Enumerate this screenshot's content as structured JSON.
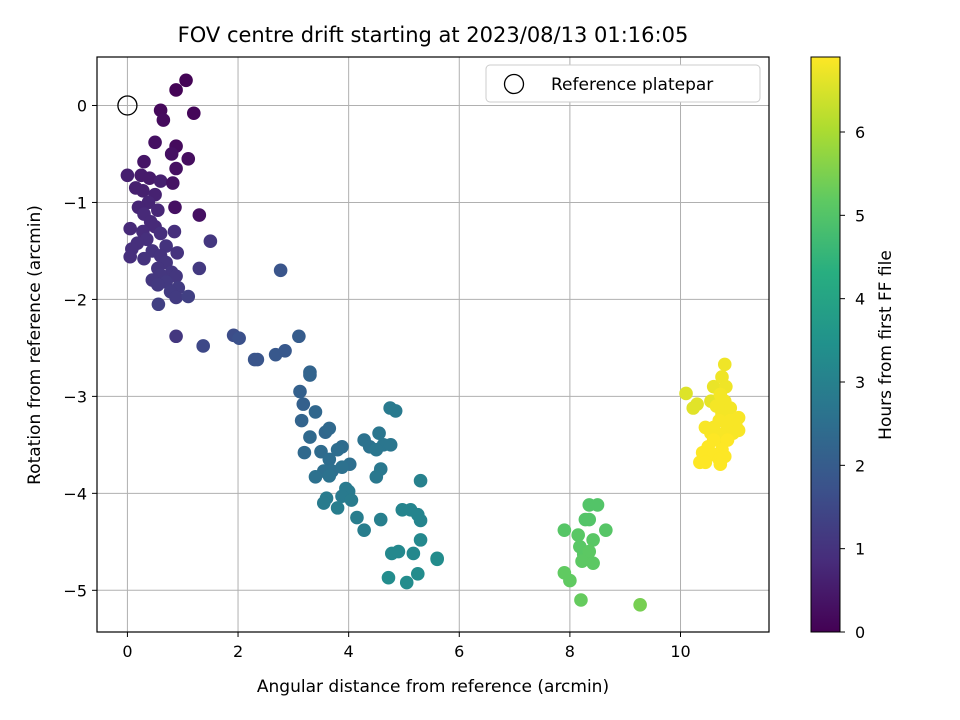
{
  "chart_data": {
    "type": "scatter",
    "title": "FOV centre drift starting at 2023/08/13 01:16:05",
    "xlabel": "Angular distance from reference (arcmin)",
    "ylabel": "Rotation from reference (arcmin)",
    "xlim": [
      -0.55,
      11.6
    ],
    "ylim": [
      -5.43,
      0.5
    ],
    "xticks": [
      0,
      2,
      4,
      6,
      8,
      10
    ],
    "yticks": [
      0,
      -1,
      -2,
      -3,
      -4,
      -5
    ],
    "grid": true,
    "legend": {
      "placement": "top-right",
      "entries": [
        "Reference platepar"
      ]
    },
    "reference_point": {
      "x": 0,
      "y": 0
    },
    "colorbar": {
      "label": "Hours from first FF file",
      "range": [
        0,
        6.9
      ],
      "ticks": [
        0,
        1,
        2,
        3,
        4,
        5,
        6
      ],
      "colormap": "viridis"
    },
    "series": [
      {
        "color_by": "Hours from first FF file",
        "points": [
          [
            1.06,
            0.26,
            0.05
          ],
          [
            0.88,
            0.16,
            0.05
          ],
          [
            0.6,
            -0.05,
            0.15
          ],
          [
            0.65,
            -0.15,
            0.2
          ],
          [
            1.2,
            -0.08,
            0.1
          ],
          [
            0.88,
            -0.42,
            0.2
          ],
          [
            0.5,
            -0.38,
            0.3
          ],
          [
            0.8,
            -0.5,
            0.3
          ],
          [
            1.1,
            -0.55,
            0.25
          ],
          [
            0.3,
            -0.58,
            0.4
          ],
          [
            0.88,
            -0.65,
            0.3
          ],
          [
            0.0,
            -0.72,
            0.6
          ],
          [
            0.25,
            -0.72,
            0.5
          ],
          [
            0.4,
            -0.75,
            0.5
          ],
          [
            0.6,
            -0.78,
            0.6
          ],
          [
            0.82,
            -0.8,
            0.35
          ],
          [
            0.15,
            -0.85,
            0.6
          ],
          [
            0.28,
            -0.88,
            0.6
          ],
          [
            0.5,
            -0.92,
            0.65
          ],
          [
            0.38,
            -1.0,
            0.7
          ],
          [
            0.2,
            -1.05,
            0.7
          ],
          [
            0.86,
            -1.05,
            0.3
          ],
          [
            0.55,
            -1.08,
            0.75
          ],
          [
            0.3,
            -1.12,
            0.8
          ],
          [
            0.42,
            -1.2,
            0.8
          ],
          [
            1.3,
            -1.13,
            0.3
          ],
          [
            0.5,
            -1.25,
            0.8
          ],
          [
            0.05,
            -1.27,
            0.8
          ],
          [
            0.28,
            -1.3,
            0.85
          ],
          [
            0.6,
            -1.32,
            0.9
          ],
          [
            0.85,
            -1.3,
            0.9
          ],
          [
            0.35,
            -1.38,
            0.9
          ],
          [
            0.18,
            -1.42,
            0.9
          ],
          [
            0.7,
            -1.45,
            1.0
          ],
          [
            0.08,
            -1.48,
            0.9
          ],
          [
            0.45,
            -1.5,
            1.0
          ],
          [
            0.9,
            -1.52,
            1.0
          ],
          [
            0.6,
            -1.55,
            1.0
          ],
          [
            0.3,
            -1.58,
            1.0
          ],
          [
            1.5,
            -1.4,
            1.1
          ],
          [
            0.05,
            -1.56,
            0.9
          ],
          [
            0.7,
            -1.62,
            1.05
          ],
          [
            0.55,
            -1.68,
            1.05
          ],
          [
            0.8,
            -1.72,
            1.1
          ],
          [
            0.6,
            -1.75,
            1.1
          ],
          [
            0.88,
            -1.76,
            1.1
          ],
          [
            0.45,
            -1.8,
            1.1
          ],
          [
            0.7,
            -1.82,
            1.15
          ],
          [
            0.55,
            -1.85,
            1.15
          ],
          [
            1.3,
            -1.68,
            1.15
          ],
          [
            0.92,
            -1.88,
            1.2
          ],
          [
            0.78,
            -1.92,
            1.2
          ],
          [
            0.88,
            -1.98,
            1.2
          ],
          [
            1.1,
            -1.97,
            1.3
          ],
          [
            0.56,
            -2.05,
            1.3
          ],
          [
            0.88,
            -2.38,
            1.1
          ],
          [
            1.37,
            -2.48,
            1.5
          ],
          [
            1.92,
            -2.37,
            1.6
          ],
          [
            2.02,
            -2.4,
            1.7
          ],
          [
            2.3,
            -2.62,
            1.8
          ],
          [
            2.35,
            -2.62,
            1.8
          ],
          [
            2.68,
            -2.57,
            1.9
          ],
          [
            2.85,
            -2.53,
            1.9
          ],
          [
            2.77,
            -1.7,
            1.8
          ],
          [
            3.1,
            -2.38,
            2.0
          ],
          [
            3.12,
            -2.95,
            2.1
          ],
          [
            3.18,
            -3.08,
            2.1
          ],
          [
            3.3,
            -2.75,
            2.2
          ],
          [
            3.3,
            -2.78,
            2.2
          ],
          [
            3.15,
            -3.25,
            2.2
          ],
          [
            3.4,
            -3.16,
            2.3
          ],
          [
            3.58,
            -3.37,
            2.3
          ],
          [
            3.65,
            -3.33,
            2.35
          ],
          [
            3.3,
            -3.42,
            2.35
          ],
          [
            3.2,
            -3.58,
            2.35
          ],
          [
            3.5,
            -3.57,
            2.4
          ],
          [
            3.88,
            -3.52,
            2.4
          ],
          [
            3.8,
            -3.55,
            2.45
          ],
          [
            3.65,
            -3.65,
            2.45
          ],
          [
            3.55,
            -3.77,
            2.5
          ],
          [
            3.7,
            -3.77,
            2.5
          ],
          [
            4.02,
            -3.7,
            2.5
          ],
          [
            3.88,
            -3.73,
            2.55
          ],
          [
            3.4,
            -3.83,
            2.55
          ],
          [
            3.65,
            -3.82,
            2.6
          ],
          [
            4.28,
            -3.45,
            2.6
          ],
          [
            4.38,
            -3.52,
            2.6
          ],
          [
            4.55,
            -3.38,
            2.7
          ],
          [
            4.63,
            -3.5,
            2.7
          ],
          [
            4.76,
            -3.5,
            2.7
          ],
          [
            4.5,
            -3.55,
            2.7
          ],
          [
            4.58,
            -3.75,
            2.75
          ],
          [
            4.5,
            -3.83,
            2.75
          ],
          [
            4.75,
            -3.12,
            2.8
          ],
          [
            4.85,
            -3.15,
            2.8
          ],
          [
            3.95,
            -3.95,
            2.8
          ],
          [
            4.0,
            -3.98,
            2.8
          ],
          [
            3.88,
            -4.03,
            2.8
          ],
          [
            3.6,
            -4.05,
            2.85
          ],
          [
            3.55,
            -4.1,
            2.85
          ],
          [
            4.05,
            -4.07,
            2.85
          ],
          [
            3.8,
            -4.15,
            2.9
          ],
          [
            4.15,
            -4.25,
            2.9
          ],
          [
            4.28,
            -4.38,
            2.9
          ],
          [
            4.58,
            -4.27,
            2.95
          ],
          [
            5.3,
            -3.87,
            3.0
          ],
          [
            4.97,
            -4.17,
            3.1
          ],
          [
            5.12,
            -4.17,
            3.1
          ],
          [
            5.25,
            -4.22,
            3.1
          ],
          [
            5.3,
            -4.28,
            3.1
          ],
          [
            5.3,
            -4.48,
            3.2
          ],
          [
            4.78,
            -4.62,
            3.2
          ],
          [
            4.9,
            -4.6,
            3.2
          ],
          [
            5.17,
            -4.62,
            3.2
          ],
          [
            5.6,
            -4.67,
            3.3
          ],
          [
            4.72,
            -4.87,
            3.3
          ],
          [
            5.25,
            -4.83,
            3.3
          ],
          [
            5.05,
            -4.92,
            3.3
          ],
          [
            5.6,
            -4.68,
            3.3
          ],
          [
            8.35,
            -4.12,
            5.0
          ],
          [
            8.5,
            -4.12,
            5.0
          ],
          [
            8.28,
            -4.27,
            5.0
          ],
          [
            8.35,
            -4.27,
            5.0
          ],
          [
            8.65,
            -4.38,
            5.05
          ],
          [
            7.9,
            -4.38,
            5.05
          ],
          [
            8.15,
            -4.43,
            5.1
          ],
          [
            8.42,
            -4.48,
            5.1
          ],
          [
            8.18,
            -4.55,
            5.1
          ],
          [
            8.25,
            -4.63,
            5.1
          ],
          [
            8.35,
            -4.6,
            5.15
          ],
          [
            8.22,
            -4.7,
            5.15
          ],
          [
            8.42,
            -4.72,
            5.15
          ],
          [
            7.9,
            -4.82,
            5.2
          ],
          [
            8.0,
            -4.9,
            5.2
          ],
          [
            8.2,
            -5.1,
            5.25
          ],
          [
            9.27,
            -5.15,
            5.45
          ],
          [
            10.1,
            -2.97,
            6.55
          ],
          [
            10.3,
            -3.08,
            6.6
          ],
          [
            10.23,
            -3.12,
            6.6
          ],
          [
            10.55,
            -3.05,
            6.65
          ],
          [
            10.6,
            -2.9,
            6.7
          ],
          [
            10.8,
            -2.67,
            6.75
          ],
          [
            10.75,
            -2.8,
            6.75
          ],
          [
            10.82,
            -2.9,
            6.75
          ],
          [
            10.72,
            -2.98,
            6.8
          ],
          [
            10.65,
            -3.1,
            6.8
          ],
          [
            10.8,
            -3.05,
            6.8
          ],
          [
            10.9,
            -3.12,
            6.8
          ],
          [
            10.75,
            -3.18,
            6.8
          ],
          [
            11.05,
            -3.22,
            6.85
          ],
          [
            10.9,
            -3.25,
            6.85
          ],
          [
            10.7,
            -3.25,
            6.85
          ],
          [
            10.85,
            -3.3,
            6.85
          ],
          [
            11.0,
            -3.3,
            6.85
          ],
          [
            10.6,
            -3.32,
            6.85
          ],
          [
            10.45,
            -3.32,
            6.85
          ],
          [
            10.55,
            -3.38,
            6.85
          ],
          [
            10.8,
            -3.38,
            6.85
          ],
          [
            10.95,
            -3.38,
            6.85
          ],
          [
            11.05,
            -3.35,
            6.85
          ],
          [
            10.7,
            -3.42,
            6.85
          ],
          [
            10.85,
            -3.45,
            6.9
          ],
          [
            10.6,
            -3.45,
            6.9
          ],
          [
            10.5,
            -3.52,
            6.9
          ],
          [
            10.75,
            -3.55,
            6.9
          ],
          [
            10.4,
            -3.58,
            6.9
          ],
          [
            10.6,
            -3.6,
            6.9
          ],
          [
            10.8,
            -3.62,
            6.9
          ],
          [
            10.7,
            -3.65,
            6.9
          ],
          [
            10.35,
            -3.68,
            6.9
          ],
          [
            10.45,
            -3.68,
            6.9
          ],
          [
            10.72,
            -3.7,
            6.9
          ]
        ]
      }
    ]
  }
}
